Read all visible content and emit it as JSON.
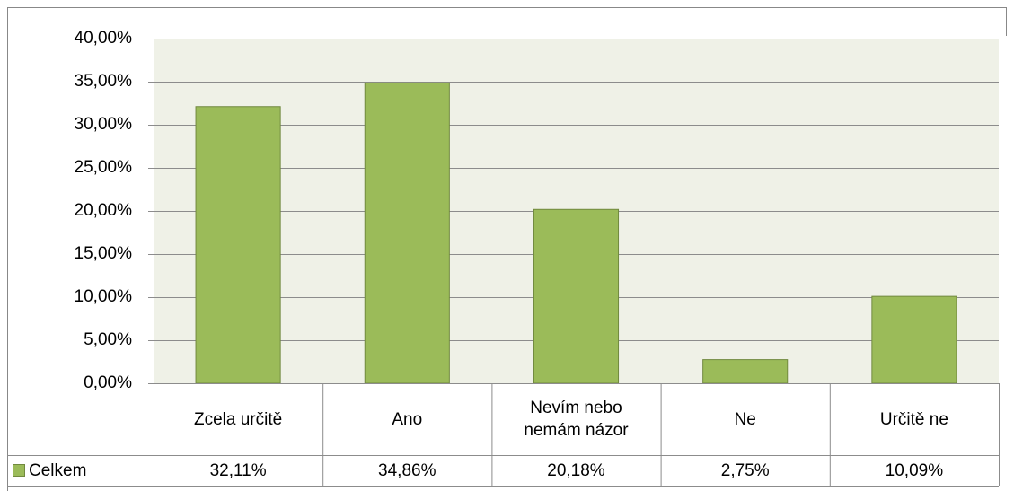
{
  "chart_data": {
    "type": "bar",
    "categories": [
      "Zcela určitě",
      "Ano",
      "Nevím nebo nemám názor",
      "Ne",
      "Určitě ne"
    ],
    "series": [
      {
        "name": "Celkem",
        "color": "#9bbb59",
        "values": [
          32.11,
          34.86,
          20.18,
          2.75,
          10.09
        ],
        "value_labels": [
          "32,11%",
          "34,86%",
          "20,18%",
          "2,75%",
          "10,09%"
        ]
      }
    ],
    "ylim": [
      0,
      40
    ],
    "yticks": [
      {
        "value": 0,
        "label": "0,00%"
      },
      {
        "value": 5,
        "label": "5,00%"
      },
      {
        "value": 10,
        "label": "10,00%"
      },
      {
        "value": 15,
        "label": "15,00%"
      },
      {
        "value": 20,
        "label": "20,00%"
      },
      {
        "value": 25,
        "label": "25,00%"
      },
      {
        "value": 30,
        "label": "30,00%"
      },
      {
        "value": 35,
        "label": "35,00%"
      },
      {
        "value": 40,
        "label": "40,00%"
      }
    ],
    "grid": true,
    "data_table": true
  }
}
